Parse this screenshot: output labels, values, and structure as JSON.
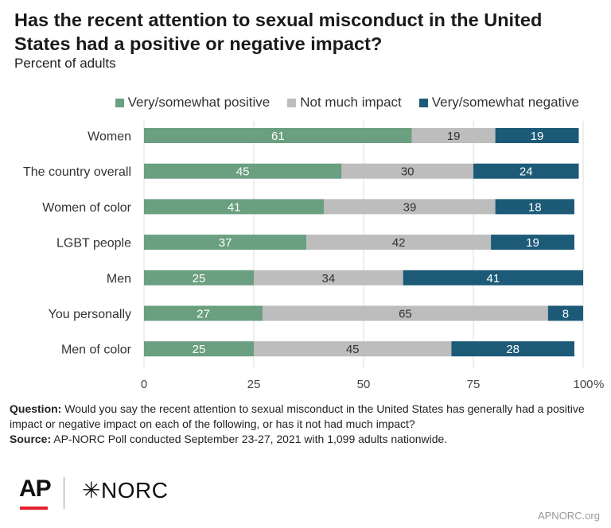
{
  "title": "Has the recent attention to sexual misconduct in the United States had a positive or negative impact?",
  "subtitle": "Percent of adults",
  "chart_data": {
    "type": "bar",
    "orientation": "horizontal",
    "stacked": true,
    "categories": [
      "Women",
      "The country overall",
      "Women of color",
      "LGBT people",
      "Men",
      "You personally",
      "Men of color"
    ],
    "series": [
      {
        "name": "Very/somewhat positive",
        "color": "#6a9f80",
        "values": [
          61,
          45,
          41,
          37,
          25,
          27,
          25
        ]
      },
      {
        "name": "Not much impact",
        "color": "#bdbdbd",
        "values": [
          19,
          30,
          39,
          42,
          34,
          65,
          45
        ]
      },
      {
        "name": "Very/somewhat negative",
        "color": "#1c5a78",
        "values": [
          19,
          24,
          18,
          19,
          41,
          8,
          28
        ]
      }
    ],
    "xlim": [
      0,
      100
    ],
    "xticks": [
      "0",
      "25",
      "50",
      "75",
      "100"
    ],
    "x_unit": "%",
    "legend_position": "top-right",
    "grid": true
  },
  "footer": {
    "question_label": "Question:",
    "question_text": "Would you say the recent attention to sexual misconduct in the United States has generally had a positive impact or negative impact on each of the following, or has it not had much impact?",
    "source_label": "Source:",
    "source_text": "AP-NORC Poll conducted September 23-27, 2021 with 1,099 adults nationwide."
  },
  "logos": {
    "ap": "AP",
    "norc": "NORC",
    "norc_mark": "✳"
  },
  "site": "APNORC.org"
}
